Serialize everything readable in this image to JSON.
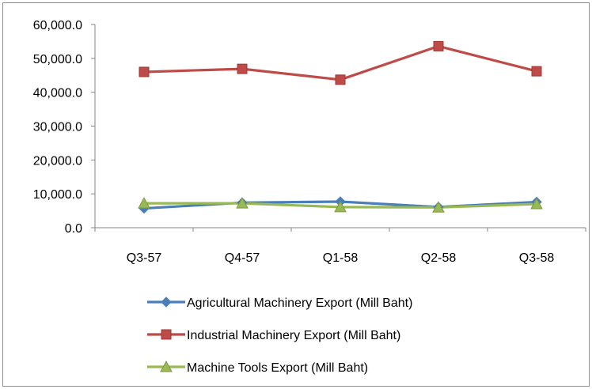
{
  "chart_data": {
    "type": "line",
    "title": "",
    "xlabel": "",
    "ylabel": "",
    "categories": [
      "Q3-57",
      "Q4-57",
      "Q1-58",
      "Q2-58",
      "Q3-58"
    ],
    "ylim": [
      0,
      60000
    ],
    "yticks": [
      0,
      10000,
      20000,
      30000,
      40000,
      50000,
      60000
    ],
    "ytick_labels": [
      "0.0",
      "10,000.0",
      "20,000.0",
      "30,000.0",
      "40,000.0",
      "50,000.0",
      "60,000.0"
    ],
    "grid": false,
    "legend_position": "bottom",
    "series": [
      {
        "name": "Agricultural Machinery Export (Mill Baht)",
        "color": "#4a7ebb",
        "marker": "diamond",
        "values": [
          5700,
          7400,
          7700,
          6100,
          7600
        ]
      },
      {
        "name": "Industrial Machinery Export (Mill Baht)",
        "color": "#be4b48",
        "marker": "square",
        "values": [
          46000,
          46900,
          43700,
          53600,
          46200
        ]
      },
      {
        "name": "Machine Tools Export (Mill Baht)",
        "color": "#98b954",
        "marker": "triangle",
        "values": [
          7200,
          7200,
          6100,
          6000,
          7000
        ]
      }
    ]
  }
}
